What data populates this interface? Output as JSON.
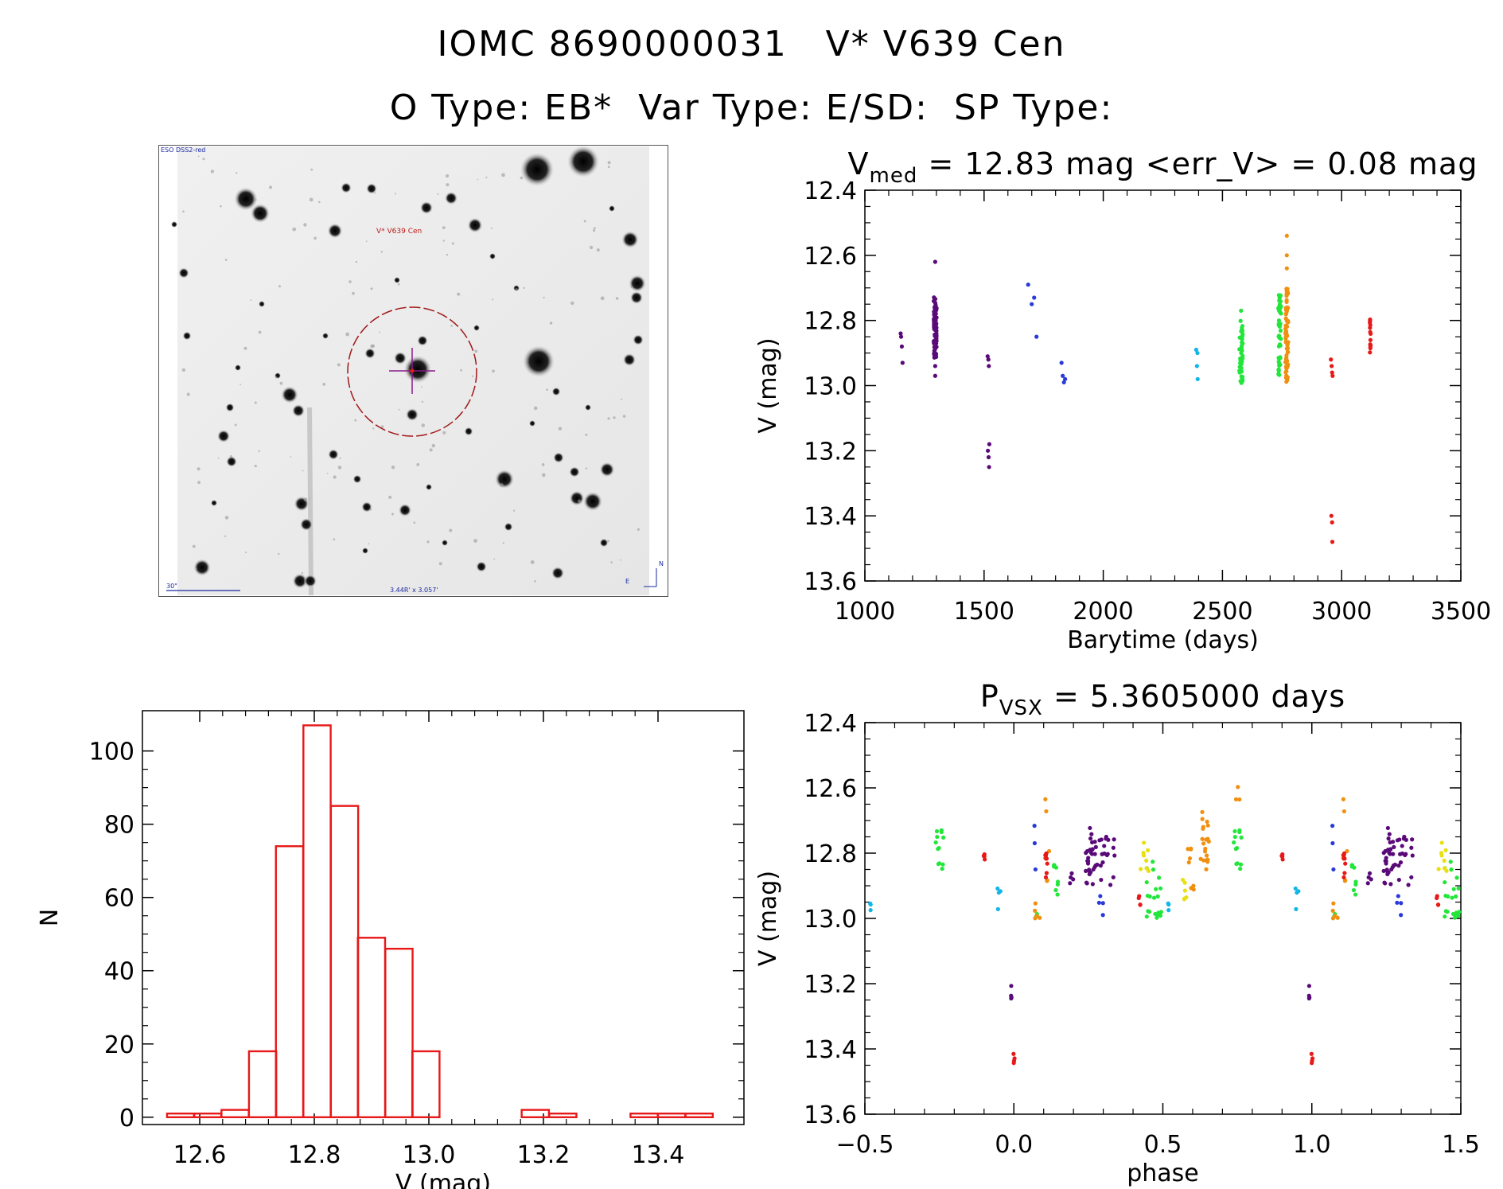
{
  "header": {
    "line1": "IOMC 8690000031   V* V639 Cen",
    "line2": "O Type: EB*  Var Type: E/SD:  SP Type:"
  },
  "finder": {
    "survey_label": "ESO DSS2-red",
    "target_label": "V* V639 Cen",
    "scale_label": "30\"",
    "fov_label": "3.44R' x 3.057'",
    "north_label": "N",
    "east_label": "E"
  },
  "colors": {
    "purple": "#5a0a78",
    "blue": "#2a3ad8",
    "cyan": "#10b6e8",
    "green": "#22e63a",
    "yellow": "#e8e010",
    "orange": "#f09010",
    "red": "#e81818",
    "hist": "#e81818",
    "circle": "#a01818"
  },
  "chart_data": [
    {
      "id": "light_curve",
      "type": "scatter",
      "title_main": "V",
      "title_sub": "med",
      "title_rest": " = 12.83 mag <err_V> = 0.08 mag",
      "xlabel": "Barytime (days)",
      "ylabel": "V (mag)",
      "xlim": [
        1000,
        3500
      ],
      "ylim": [
        12.4,
        13.6
      ],
      "y_inverted": true,
      "xticks": [
        "1000",
        "1500",
        "2000",
        "2500",
        "3000",
        "3500"
      ],
      "yticks": [
        "12.4",
        "12.6",
        "12.8",
        "13.0",
        "13.2",
        "13.4",
        "13.6"
      ],
      "series": [
        {
          "name": "s1",
          "color": "purple",
          "x": [
            1150,
            1152,
            1155,
            1158
          ],
          "y": [
            12.84,
            12.85,
            12.88,
            12.93
          ]
        },
        {
          "name": "s2",
          "color": "purple",
          "x_center": 1295,
          "x_spread": 12,
          "y_min": 12.72,
          "y_max": 12.92,
          "count": 70,
          "extra_y": [
            12.62,
            12.97,
            12.94
          ]
        },
        {
          "name": "s3",
          "color": "purple",
          "x": [
            1515,
            1518,
            1520,
            1522,
            1516,
            1519,
            1521
          ],
          "y": [
            12.91,
            12.92,
            12.94,
            13.18,
            13.2,
            13.22,
            13.25
          ]
        },
        {
          "name": "s4",
          "color": "blue",
          "x": [
            1685,
            1700,
            1710,
            1720
          ],
          "y": [
            12.69,
            12.75,
            12.73,
            12.85
          ]
        },
        {
          "name": "s5",
          "color": "blue",
          "x": [
            1825,
            1830,
            1835,
            1840
          ],
          "y": [
            12.93,
            12.97,
            12.99,
            12.98
          ]
        },
        {
          "name": "s6",
          "color": "cyan",
          "x": [
            2390,
            2393,
            2396,
            2395
          ],
          "y": [
            12.89,
            12.94,
            12.98,
            12.9
          ]
        },
        {
          "name": "s7",
          "color": "green",
          "x_center": 2578,
          "x_spread": 14,
          "y_min": 12.8,
          "y_max": 13.0,
          "count": 40,
          "extra_y": [
            12.77
          ]
        },
        {
          "name": "s8",
          "color": "green",
          "x_center": 2740,
          "x_spread": 12,
          "y_min": 12.72,
          "y_max": 12.99,
          "count": 45,
          "extra_y": []
        },
        {
          "name": "s9",
          "color": "orange",
          "x_center": 2770,
          "x_spread": 12,
          "y_min": 12.7,
          "y_max": 12.99,
          "count": 70,
          "extra_y": [
            12.54,
            12.6,
            12.64
          ]
        },
        {
          "name": "s10",
          "color": "red",
          "x": [
            2955,
            2958,
            2960,
            2962,
            2957,
            2960,
            2961
          ],
          "y": [
            12.92,
            12.94,
            12.96,
            12.97,
            13.4,
            13.42,
            13.48
          ]
        },
        {
          "name": "s11",
          "color": "red",
          "x_center": 3120,
          "x_spread": 4,
          "y_min": 12.79,
          "y_max": 12.9,
          "count": 14,
          "extra_y": []
        }
      ]
    },
    {
      "id": "phased",
      "type": "scatter",
      "title_main": "P",
      "title_sub": "VSX",
      "title_rest": " = 5.3605000 days",
      "xlabel": "phase",
      "ylabel": "V (mag)",
      "xlim": [
        -0.5,
        1.5
      ],
      "ylim": [
        12.4,
        13.6
      ],
      "y_inverted": true,
      "xticks": [
        "−0.5",
        "0.0",
        "0.5",
        "1.0",
        "1.5"
      ],
      "yticks": [
        "12.4",
        "12.6",
        "12.8",
        "13.0",
        "13.2",
        "13.4",
        "13.6"
      ],
      "groups": [
        {
          "color": "purple",
          "phase": 0.26,
          "spread": 0.04,
          "y_min": 12.72,
          "y_max": 12.9,
          "count": 30
        },
        {
          "color": "purple",
          "phase": 0.31,
          "spread": 0.06,
          "y_min": 12.75,
          "y_max": 12.92,
          "count": 18
        },
        {
          "color": "purple",
          "phase": 0.19,
          "spread": 0.02,
          "y_min": 12.82,
          "y_max": 12.93,
          "count": 4
        },
        {
          "color": "purple",
          "phase": -0.01,
          "spread": 0.005,
          "y_min": 13.18,
          "y_max": 13.25,
          "count": 4
        },
        {
          "color": "blue",
          "phase": 0.07,
          "spread": 0.01,
          "y_min": 12.69,
          "y_max": 12.85,
          "count": 3
        },
        {
          "color": "blue",
          "phase": 0.29,
          "spread": 0.02,
          "y_min": 12.93,
          "y_max": 12.99,
          "count": 4
        },
        {
          "color": "cyan",
          "phase": -0.05,
          "spread": 0.01,
          "y_min": 12.89,
          "y_max": 12.98,
          "count": 4
        },
        {
          "color": "cyan",
          "phase": -0.48,
          "spread": 0.01,
          "y_min": 12.93,
          "y_max": 12.98,
          "count": 3
        },
        {
          "color": "green",
          "phase": 0.47,
          "spread": 0.05,
          "y_min": 12.82,
          "y_max": 13.0,
          "count": 22
        },
        {
          "color": "green",
          "phase": 0.14,
          "spread": 0.02,
          "y_min": 12.83,
          "y_max": 12.93,
          "count": 8
        },
        {
          "color": "green",
          "phase": -0.25,
          "spread": 0.03,
          "y_min": 12.73,
          "y_max": 12.85,
          "count": 12
        },
        {
          "color": "green",
          "phase": 0.08,
          "spread": 0.01,
          "y_min": 12.96,
          "y_max": 13.0,
          "count": 3
        },
        {
          "color": "yellow",
          "phase": 0.44,
          "spread": 0.03,
          "y_min": 12.76,
          "y_max": 12.86,
          "count": 8
        },
        {
          "color": "yellow",
          "phase": 0.57,
          "spread": 0.03,
          "y_min": 12.88,
          "y_max": 12.95,
          "count": 6
        },
        {
          "color": "orange",
          "phase": 0.64,
          "spread": 0.03,
          "y_min": 12.66,
          "y_max": 12.85,
          "count": 20
        },
        {
          "color": "orange",
          "phase": 0.59,
          "spread": 0.03,
          "y_min": 12.78,
          "y_max": 12.92,
          "count": 8
        },
        {
          "color": "orange",
          "phase": 0.75,
          "spread": 0.02,
          "y_min": 12.54,
          "y_max": 12.66,
          "count": 3
        },
        {
          "color": "orange",
          "phase": 0.11,
          "spread": 0.02,
          "y_min": 12.59,
          "y_max": 12.9,
          "count": 6
        },
        {
          "color": "orange",
          "phase": 0.08,
          "spread": 0.02,
          "y_min": 12.93,
          "y_max": 13.0,
          "count": 5
        },
        {
          "color": "red",
          "phase": 0.11,
          "spread": 0.01,
          "y_min": 12.8,
          "y_max": 12.88,
          "count": 8
        },
        {
          "color": "red",
          "phase": -0.1,
          "spread": 0.005,
          "y_min": 12.79,
          "y_max": 12.83,
          "count": 4
        },
        {
          "color": "red",
          "phase": 0.42,
          "spread": 0.01,
          "y_min": 12.93,
          "y_max": 12.97,
          "count": 4
        },
        {
          "color": "red",
          "phase": 0.0,
          "spread": 0.005,
          "y_min": 13.4,
          "y_max": 13.48,
          "count": 4
        }
      ]
    },
    {
      "id": "histogram",
      "type": "bar",
      "xlabel": "V (mag)",
      "ylabel": "N",
      "xlim": [
        12.5,
        13.55
      ],
      "ylim": [
        -2,
        111
      ],
      "xticks": [
        "12.6",
        "12.8",
        "13.0",
        "13.2",
        "13.4"
      ],
      "yticks": [
        "0",
        "20",
        "40",
        "60",
        "80",
        "100"
      ],
      "bin_width": 0.0476,
      "bin_starts": [
        12.543,
        12.59,
        12.638,
        12.686,
        12.733,
        12.781,
        12.829,
        12.876,
        12.924,
        12.971,
        13.019,
        13.067,
        13.114,
        13.162,
        13.21,
        13.257,
        13.305,
        13.352,
        13.4,
        13.448
      ],
      "counts": [
        1,
        1,
        2,
        18,
        74,
        107,
        85,
        49,
        46,
        18,
        0,
        0,
        0,
        2,
        1,
        0,
        0,
        1,
        1,
        1
      ]
    }
  ]
}
